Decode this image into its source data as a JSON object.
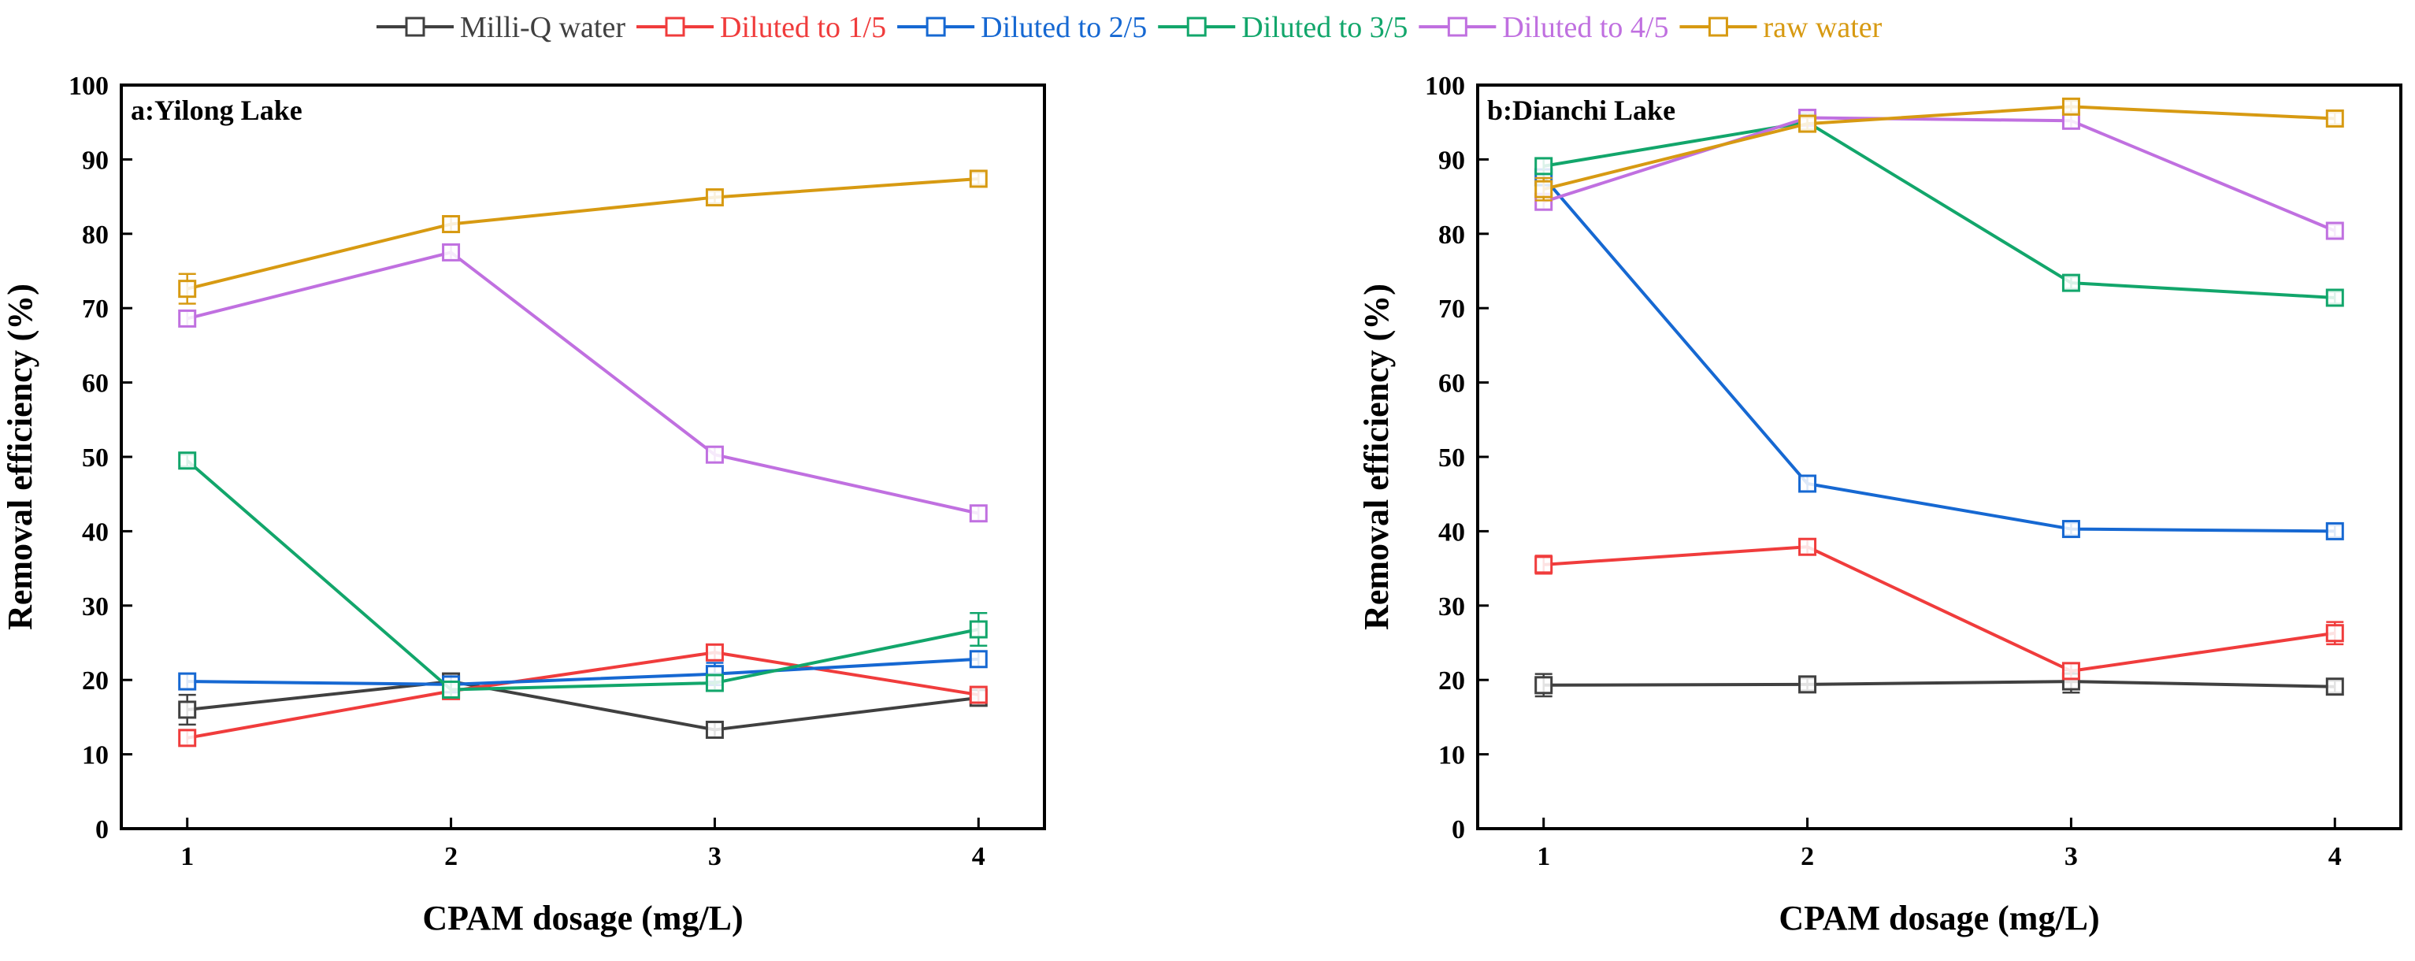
{
  "colors": {
    "Milli-Q water": "#404040",
    "Diluted to 1/5": "#F03C3C",
    "Diluted to 2/5": "#1668D2",
    "Diluted to 3/5": "#12A66B",
    "Diluted to 4/5": "#C070E0",
    "raw water": "#D79A12"
  },
  "legend": {
    "position": "top-center",
    "entries": [
      "Milli-Q water",
      "Diluted to 1/5",
      "Diluted to 2/5",
      "Diluted to 3/5",
      "Diluted to 4/5",
      "raw water"
    ]
  },
  "chart_data": [
    {
      "type": "line",
      "title": "a:Yilong Lake",
      "xlabel": "CPAM dosage (mg/L)",
      "ylabel": "Removal efficiency (%)",
      "x": [
        1,
        2,
        3,
        4
      ],
      "xticks": [
        "1",
        "2",
        "3",
        "4"
      ],
      "xlim": [
        0.75,
        4.25
      ],
      "ylim": [
        0,
        100
      ],
      "yticks": [
        "0",
        "10",
        "20",
        "30",
        "40",
        "50",
        "60",
        "70",
        "80",
        "90",
        "100"
      ],
      "grid": false,
      "marker": "open-square",
      "error_bars": true,
      "series": [
        {
          "name": "Milli-Q water",
          "values": [
            16.0,
            19.8,
            13.3,
            17.6
          ],
          "errors": [
            2.0,
            1.0,
            1.0,
            1.0
          ]
        },
        {
          "name": "Diluted to 1/5",
          "values": [
            12.2,
            18.5,
            23.7,
            18.0
          ],
          "errors": [
            1.0,
            1.0,
            1.0,
            1.0
          ]
        },
        {
          "name": "Diluted to 2/5",
          "values": [
            19.8,
            19.4,
            20.8,
            22.8
          ],
          "errors": [
            1.0,
            1.0,
            1.5,
            1.0
          ]
        },
        {
          "name": "Diluted to 3/5",
          "values": [
            49.5,
            18.7,
            19.6,
            26.8
          ],
          "errors": [
            0.8,
            1.0,
            1.0,
            2.2
          ]
        },
        {
          "name": "Diluted to 4/5",
          "values": [
            68.6,
            77.5,
            50.3,
            42.4
          ],
          "errors": [
            1.0,
            1.0,
            1.0,
            1.0
          ]
        },
        {
          "name": "raw water",
          "values": [
            72.6,
            81.3,
            84.9,
            87.4
          ],
          "errors": [
            2.0,
            1.0,
            0.8,
            0.8
          ]
        }
      ]
    },
    {
      "type": "line",
      "title": "b:Dianchi Lake",
      "xlabel": "CPAM dosage (mg/L)",
      "ylabel": "Removal efficiency (%)",
      "x": [
        1,
        2,
        3,
        4
      ],
      "xticks": [
        "1",
        "2",
        "3",
        "4"
      ],
      "xlim": [
        0.75,
        4.25
      ],
      "ylim": [
        0,
        100
      ],
      "yticks": [
        "0",
        "10",
        "20",
        "30",
        "40",
        "50",
        "60",
        "70",
        "80",
        "90",
        "100"
      ],
      "grid": false,
      "marker": "open-square",
      "error_bars": true,
      "series": [
        {
          "name": "Milli-Q water",
          "values": [
            19.3,
            19.4,
            19.8,
            19.1
          ],
          "errors": [
            1.5,
            0.8,
            1.5,
            0.8
          ]
        },
        {
          "name": "Diluted to 1/5",
          "values": [
            35.5,
            37.9,
            21.2,
            26.3
          ],
          "errors": [
            1.2,
            1.0,
            1.0,
            1.5
          ]
        },
        {
          "name": "Diluted to 2/5",
          "values": [
            87.6,
            46.4,
            40.3,
            40.0
          ],
          "errors": [
            1.0,
            1.0,
            0.8,
            0.8
          ]
        },
        {
          "name": "Diluted to 3/5",
          "values": [
            89.1,
            95.0,
            73.4,
            71.4
          ],
          "errors": [
            1.0,
            0.8,
            0.8,
            0.8
          ]
        },
        {
          "name": "Diluted to 4/5",
          "values": [
            84.3,
            95.6,
            95.2,
            80.4
          ],
          "errors": [
            1.0,
            0.8,
            1.0,
            0.8
          ]
        },
        {
          "name": "raw water",
          "values": [
            86.0,
            94.8,
            97.1,
            95.5
          ],
          "errors": [
            1.5,
            0.8,
            0.8,
            0.8
          ]
        }
      ]
    }
  ]
}
